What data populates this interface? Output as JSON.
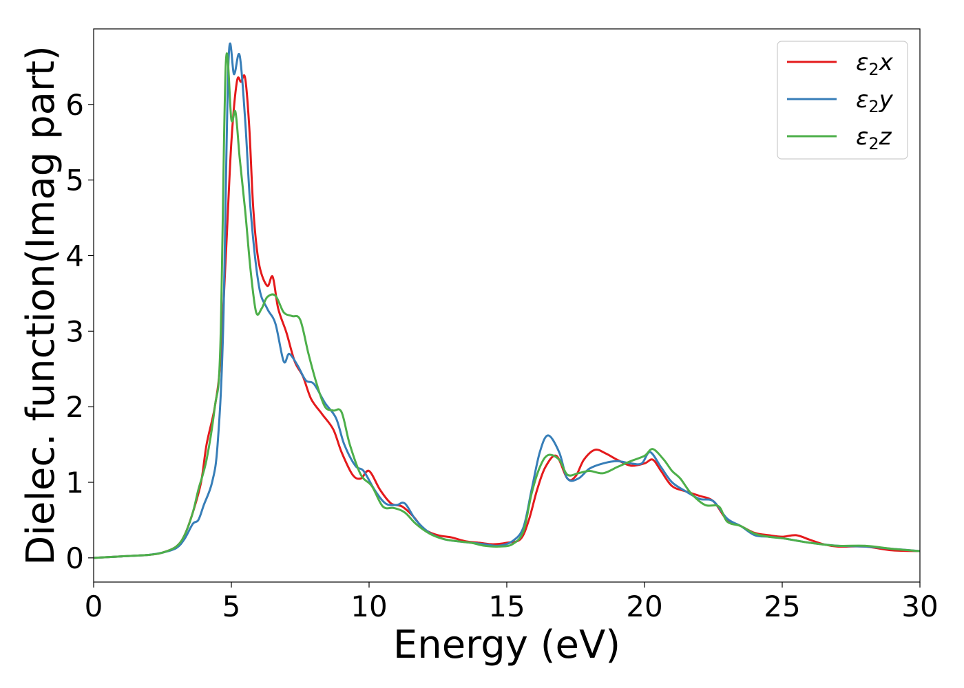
{
  "chart_data": {
    "type": "line",
    "title": "",
    "xlabel": "Energy (eV)",
    "ylabel": "Dielec. function(Imag part)",
    "xlim": [
      0,
      30
    ],
    "ylim": [
      -0.32,
      7.0
    ],
    "xticks": [
      0,
      5,
      10,
      15,
      20,
      25,
      30
    ],
    "xtick_labels": [
      "0",
      "5",
      "10",
      "15",
      "20",
      "25",
      "30"
    ],
    "yticks": [
      0,
      1,
      2,
      3,
      4,
      5,
      6
    ],
    "ytick_labels": [
      "0",
      "1",
      "2",
      "3",
      "4",
      "5",
      "6"
    ],
    "grid": false,
    "legend": "top-right",
    "series": [
      {
        "name": "ε₂x",
        "label_main": "ε",
        "label_sub": "2",
        "label_var": "x",
        "color": "#e41a1c",
        "points": [
          [
            0,
            0
          ],
          [
            1,
            0.02
          ],
          [
            2,
            0.04
          ],
          [
            2.5,
            0.07
          ],
          [
            3,
            0.15
          ],
          [
            3.3,
            0.3
          ],
          [
            3.6,
            0.6
          ],
          [
            3.9,
            1.0
          ],
          [
            4.1,
            1.5
          ],
          [
            4.4,
            2.0
          ],
          [
            4.6,
            2.6
          ],
          [
            4.8,
            4.0
          ],
          [
            5.0,
            5.5
          ],
          [
            5.2,
            6.3
          ],
          [
            5.35,
            6.3
          ],
          [
            5.5,
            6.35
          ],
          [
            5.65,
            5.7
          ],
          [
            5.8,
            4.6
          ],
          [
            6.0,
            3.9
          ],
          [
            6.3,
            3.6
          ],
          [
            6.5,
            3.72
          ],
          [
            6.7,
            3.3
          ],
          [
            7.0,
            2.98
          ],
          [
            7.3,
            2.6
          ],
          [
            7.6,
            2.4
          ],
          [
            7.9,
            2.1
          ],
          [
            8.3,
            1.9
          ],
          [
            8.7,
            1.7
          ],
          [
            9.0,
            1.4
          ],
          [
            9.4,
            1.1
          ],
          [
            9.7,
            1.05
          ],
          [
            10.0,
            1.15
          ],
          [
            10.4,
            0.9
          ],
          [
            10.8,
            0.72
          ],
          [
            11.2,
            0.68
          ],
          [
            11.6,
            0.55
          ],
          [
            12.0,
            0.38
          ],
          [
            12.5,
            0.3
          ],
          [
            13.0,
            0.27
          ],
          [
            13.5,
            0.22
          ],
          [
            14.0,
            0.2
          ],
          [
            14.5,
            0.18
          ],
          [
            15.0,
            0.2
          ],
          [
            15.5,
            0.25
          ],
          [
            15.8,
            0.5
          ],
          [
            16.1,
            0.9
          ],
          [
            16.4,
            1.2
          ],
          [
            16.8,
            1.35
          ],
          [
            17.2,
            1.05
          ],
          [
            17.5,
            1.08
          ],
          [
            17.8,
            1.3
          ],
          [
            18.2,
            1.43
          ],
          [
            18.6,
            1.38
          ],
          [
            19.0,
            1.3
          ],
          [
            19.5,
            1.22
          ],
          [
            20.0,
            1.25
          ],
          [
            20.3,
            1.3
          ],
          [
            20.6,
            1.15
          ],
          [
            21.0,
            0.95
          ],
          [
            21.5,
            0.88
          ],
          [
            22.0,
            0.82
          ],
          [
            22.5,
            0.75
          ],
          [
            23.0,
            0.5
          ],
          [
            23.5,
            0.42
          ],
          [
            24.0,
            0.33
          ],
          [
            24.5,
            0.3
          ],
          [
            25.0,
            0.28
          ],
          [
            25.5,
            0.3
          ],
          [
            26.0,
            0.24
          ],
          [
            26.5,
            0.18
          ],
          [
            27.0,
            0.15
          ],
          [
            28.0,
            0.15
          ],
          [
            29.0,
            0.1
          ],
          [
            30.0,
            0.09
          ]
        ]
      },
      {
        "name": "ε₂y",
        "label_main": "ε",
        "label_sub": "2",
        "label_var": "y",
        "color": "#377eb8",
        "points": [
          [
            0,
            0
          ],
          [
            1,
            0.02
          ],
          [
            2,
            0.04
          ],
          [
            2.5,
            0.07
          ],
          [
            3,
            0.13
          ],
          [
            3.3,
            0.25
          ],
          [
            3.6,
            0.45
          ],
          [
            3.8,
            0.5
          ],
          [
            4.0,
            0.7
          ],
          [
            4.3,
            1.0
          ],
          [
            4.5,
            1.5
          ],
          [
            4.7,
            3.0
          ],
          [
            4.9,
            6.6
          ],
          [
            5.1,
            6.4
          ],
          [
            5.3,
            6.65
          ],
          [
            5.5,
            5.8
          ],
          [
            5.7,
            4.6
          ],
          [
            6.0,
            3.6
          ],
          [
            6.3,
            3.3
          ],
          [
            6.6,
            3.1
          ],
          [
            6.9,
            2.6
          ],
          [
            7.1,
            2.7
          ],
          [
            7.4,
            2.55
          ],
          [
            7.7,
            2.35
          ],
          [
            8.0,
            2.3
          ],
          [
            8.4,
            2.05
          ],
          [
            8.8,
            1.85
          ],
          [
            9.1,
            1.5
          ],
          [
            9.5,
            1.22
          ],
          [
            9.8,
            1.15
          ],
          [
            10.2,
            0.9
          ],
          [
            10.6,
            0.72
          ],
          [
            11.0,
            0.7
          ],
          [
            11.3,
            0.72
          ],
          [
            11.7,
            0.5
          ],
          [
            12.2,
            0.33
          ],
          [
            12.7,
            0.25
          ],
          [
            13.2,
            0.22
          ],
          [
            13.7,
            0.2
          ],
          [
            14.2,
            0.18
          ],
          [
            14.7,
            0.16
          ],
          [
            15.2,
            0.22
          ],
          [
            15.6,
            0.4
          ],
          [
            15.9,
            0.9
          ],
          [
            16.2,
            1.4
          ],
          [
            16.5,
            1.62
          ],
          [
            16.9,
            1.4
          ],
          [
            17.2,
            1.05
          ],
          [
            17.6,
            1.05
          ],
          [
            18.0,
            1.18
          ],
          [
            18.5,
            1.25
          ],
          [
            19.0,
            1.28
          ],
          [
            19.5,
            1.25
          ],
          [
            19.9,
            1.25
          ],
          [
            20.2,
            1.4
          ],
          [
            20.6,
            1.2
          ],
          [
            21.0,
            1.0
          ],
          [
            21.5,
            0.88
          ],
          [
            22.0,
            0.78
          ],
          [
            22.5,
            0.75
          ],
          [
            23.0,
            0.52
          ],
          [
            23.5,
            0.42
          ],
          [
            24.0,
            0.3
          ],
          [
            24.5,
            0.28
          ],
          [
            25.0,
            0.26
          ],
          [
            25.5,
            0.23
          ],
          [
            26.0,
            0.2
          ],
          [
            27.0,
            0.16
          ],
          [
            28.0,
            0.15
          ],
          [
            29.0,
            0.12
          ],
          [
            30.0,
            0.09
          ]
        ]
      },
      {
        "name": "ε₂z",
        "label_main": "ε",
        "label_sub": "2",
        "label_var": "z",
        "color": "#4daf4a",
        "points": [
          [
            0,
            0
          ],
          [
            1,
            0.02
          ],
          [
            2,
            0.04
          ],
          [
            2.5,
            0.07
          ],
          [
            3,
            0.15
          ],
          [
            3.3,
            0.3
          ],
          [
            3.6,
            0.6
          ],
          [
            3.8,
            0.9
          ],
          [
            4.1,
            1.3
          ],
          [
            4.4,
            2.0
          ],
          [
            4.6,
            2.8
          ],
          [
            4.8,
            6.55
          ],
          [
            5.0,
            5.8
          ],
          [
            5.15,
            5.9
          ],
          [
            5.3,
            5.3
          ],
          [
            5.5,
            4.6
          ],
          [
            5.7,
            3.8
          ],
          [
            5.9,
            3.25
          ],
          [
            6.1,
            3.3
          ],
          [
            6.3,
            3.45
          ],
          [
            6.6,
            3.47
          ],
          [
            6.9,
            3.25
          ],
          [
            7.2,
            3.2
          ],
          [
            7.5,
            3.15
          ],
          [
            7.8,
            2.7
          ],
          [
            8.1,
            2.3
          ],
          [
            8.4,
            2.0
          ],
          [
            8.7,
            1.95
          ],
          [
            9.0,
            1.93
          ],
          [
            9.3,
            1.5
          ],
          [
            9.7,
            1.1
          ],
          [
            10.1,
            0.95
          ],
          [
            10.5,
            0.68
          ],
          [
            10.9,
            0.66
          ],
          [
            11.3,
            0.6
          ],
          [
            11.7,
            0.45
          ],
          [
            12.2,
            0.32
          ],
          [
            12.7,
            0.25
          ],
          [
            13.2,
            0.22
          ],
          [
            13.7,
            0.2
          ],
          [
            14.2,
            0.16
          ],
          [
            14.7,
            0.15
          ],
          [
            15.2,
            0.18
          ],
          [
            15.6,
            0.35
          ],
          [
            15.9,
            0.85
          ],
          [
            16.2,
            1.2
          ],
          [
            16.5,
            1.36
          ],
          [
            16.9,
            1.3
          ],
          [
            17.2,
            1.1
          ],
          [
            17.6,
            1.12
          ],
          [
            18.0,
            1.15
          ],
          [
            18.5,
            1.12
          ],
          [
            19.0,
            1.2
          ],
          [
            19.5,
            1.28
          ],
          [
            20.0,
            1.35
          ],
          [
            20.3,
            1.44
          ],
          [
            20.7,
            1.3
          ],
          [
            21.0,
            1.15
          ],
          [
            21.3,
            1.05
          ],
          [
            21.7,
            0.85
          ],
          [
            22.2,
            0.7
          ],
          [
            22.7,
            0.68
          ],
          [
            23.0,
            0.48
          ],
          [
            23.5,
            0.42
          ],
          [
            24.0,
            0.32
          ],
          [
            24.5,
            0.28
          ],
          [
            25.0,
            0.26
          ],
          [
            25.5,
            0.23
          ],
          [
            26.0,
            0.2
          ],
          [
            27.0,
            0.16
          ],
          [
            28.0,
            0.16
          ],
          [
            29.0,
            0.12
          ],
          [
            30.0,
            0.09
          ]
        ]
      }
    ]
  }
}
